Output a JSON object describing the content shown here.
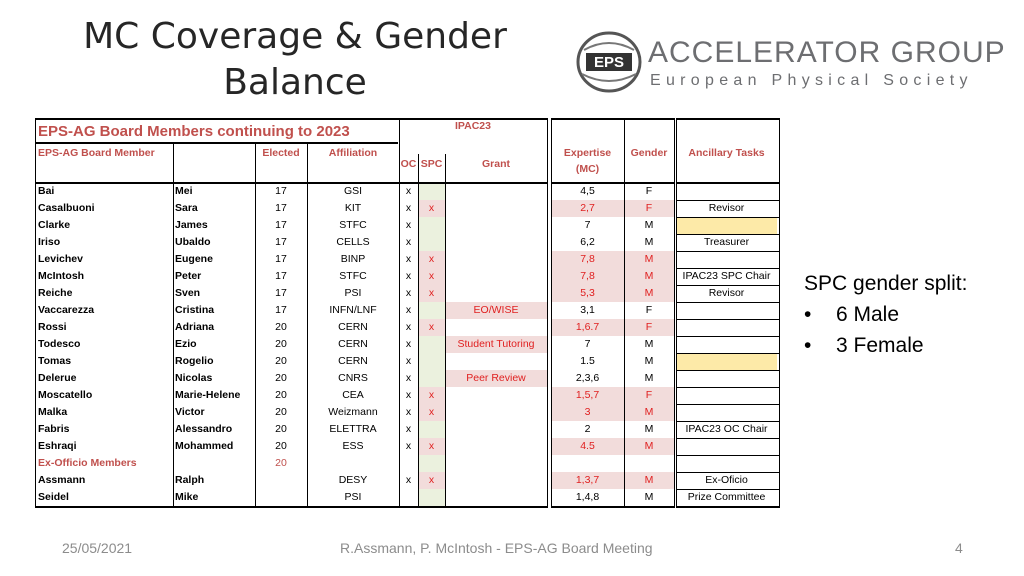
{
  "slide": {
    "title_line1": "MC Coverage & Gender",
    "title_line2": "Balance",
    "logo": {
      "line1": "ACCELERATOR GROUP",
      "line2": "European Physical Society",
      "emblem": "EPS"
    }
  },
  "table": {
    "section_title": "EPS-AG Board Members continuing to 2023",
    "ipac_label": "IPAC23",
    "headers": {
      "member": "EPS-AG Board Member",
      "elected": "Elected",
      "affiliation": "Affiliation",
      "oc": "OC",
      "spc": "SPC",
      "grant": "Grant",
      "expertise_line1": "Expertise",
      "expertise_line2": "(MC)",
      "gender": "Gender",
      "ancillary": "Ancillary Tasks"
    },
    "rows": [
      {
        "last": "Bai",
        "first": "Mei",
        "elected": "17",
        "aff": "GSI",
        "oc": "x",
        "spc": "",
        "grant": "",
        "exp": "4,5",
        "gender": "F",
        "anc": "",
        "pink": false,
        "anc_yellow": false
      },
      {
        "last": "Casalbuoni",
        "first": "Sara",
        "elected": "17",
        "aff": "KIT",
        "oc": "x",
        "spc": "x",
        "grant": "",
        "exp": "2,7",
        "gender": "F",
        "anc": "Revisor",
        "pink": true,
        "anc_yellow": false
      },
      {
        "last": "Clarke",
        "first": "James",
        "elected": "17",
        "aff": "STFC",
        "oc": "x",
        "spc": "",
        "grant": "",
        "exp": "7",
        "gender": "M",
        "anc": "",
        "pink": false,
        "anc_yellow": true
      },
      {
        "last": "Iriso",
        "first": "Ubaldo",
        "elected": "17",
        "aff": "CELLS",
        "oc": "x",
        "spc": "",
        "grant": "",
        "exp": "6,2",
        "gender": "M",
        "anc": "Treasurer",
        "pink": false,
        "anc_yellow": false
      },
      {
        "last": "Levichev",
        "first": "Eugene",
        "elected": "17",
        "aff": "BINP",
        "oc": "x",
        "spc": "x",
        "grant": "",
        "exp": "7,8",
        "gender": "M",
        "anc": "",
        "pink": true,
        "anc_yellow": false
      },
      {
        "last": "McIntosh",
        "first": "Peter",
        "elected": "17",
        "aff": "STFC",
        "oc": "x",
        "spc": "x",
        "grant": "",
        "exp": "7,8",
        "gender": "M",
        "anc": "IPAC23 SPC Chair",
        "pink": true,
        "anc_yellow": false
      },
      {
        "last": "Reiche",
        "first": "Sven",
        "elected": "17",
        "aff": "PSI",
        "oc": "x",
        "spc": "x",
        "grant": "",
        "exp": "5,3",
        "gender": "M",
        "anc": "Revisor",
        "pink": true,
        "anc_yellow": false
      },
      {
        "last": "Vaccarezza",
        "first": "Cristina",
        "elected": "17",
        "aff": "INFN/LNF",
        "oc": "x",
        "spc": "",
        "grant": "EO/WISE",
        "exp": "3,1",
        "gender": "F",
        "anc": "",
        "pink": false,
        "anc_yellow": false
      },
      {
        "last": "Rossi",
        "first": "Adriana",
        "elected": "20",
        "aff": "CERN",
        "oc": "x",
        "spc": "x",
        "grant": "",
        "exp": "1,6.7",
        "gender": "F",
        "anc": "",
        "pink": true,
        "anc_yellow": false
      },
      {
        "last": "Todesco",
        "first": "Ezio",
        "elected": "20",
        "aff": "CERN",
        "oc": "x",
        "spc": "",
        "grant": "Student Tutoring",
        "exp": "7",
        "gender": "M",
        "anc": "",
        "pink": false,
        "anc_yellow": false
      },
      {
        "last": "Tomas",
        "first": "Rogelio",
        "elected": "20",
        "aff": "CERN",
        "oc": "x",
        "spc": "",
        "grant": "",
        "exp": "1.5",
        "gender": "M",
        "anc": "",
        "pink": false,
        "anc_yellow": true
      },
      {
        "last": "Delerue",
        "first": "Nicolas",
        "elected": "20",
        "aff": "CNRS",
        "oc": "x",
        "spc": "",
        "grant": "Peer Review",
        "exp": "2,3,6",
        "gender": "M",
        "anc": "",
        "pink": false,
        "anc_yellow": false
      },
      {
        "last": "Moscatello",
        "first": "Marie-Helene",
        "elected": "20",
        "aff": "CEA",
        "oc": "x",
        "spc": "x",
        "grant": "",
        "exp": "1,5,7",
        "gender": "F",
        "anc": "",
        "pink": true,
        "anc_yellow": false
      },
      {
        "last": "Malka",
        "first": "Victor",
        "elected": "20",
        "aff": "Weizmann",
        "oc": "x",
        "spc": "x",
        "grant": "",
        "exp": "3",
        "gender": "M",
        "anc": "",
        "pink": true,
        "anc_yellow": false
      },
      {
        "last": "Fabris",
        "first": "Alessandro",
        "elected": "20",
        "aff": "ELETTRA",
        "oc": "x",
        "spc": "",
        "grant": "",
        "exp": "2",
        "gender": "M",
        "anc": "IPAC23 OC Chair",
        "pink": false,
        "anc_yellow": false
      },
      {
        "last": "Eshraqi",
        "first": "Mohammed",
        "elected": "20",
        "aff": "ESS",
        "oc": "x",
        "spc": "x",
        "grant": "",
        "exp": "4.5",
        "gender": "M",
        "anc": "",
        "pink": true,
        "anc_yellow": false
      }
    ],
    "exofficio_label": "Ex-Officio Members",
    "exofficio_elected": "20",
    "exofficio_rows": [
      {
        "last": "Assmann",
        "first": "Ralph",
        "elected": "",
        "aff": "DESY",
        "oc": "x",
        "spc": "x",
        "grant": "",
        "exp": "1,3,7",
        "gender": "M",
        "anc": "Ex-Oficio",
        "pink": true,
        "anc_yellow": false
      },
      {
        "last": "Seidel",
        "first": "Mike",
        "elected": "",
        "aff": "PSI",
        "oc": "",
        "spc": "",
        "grant": "",
        "exp": "1,4,8",
        "gender": "M",
        "anc": "Prize Committee",
        "pink": false,
        "anc_yellow": false
      }
    ]
  },
  "spc_split": {
    "title": "SPC gender split:",
    "bullet": "•",
    "items": [
      "6 Male",
      "3 Female"
    ]
  },
  "footer": {
    "date": "25/05/2021",
    "center": "R.Assmann, P. McIntosh - EPS-AG Board Meeting",
    "page": "4"
  },
  "colors": {
    "header_red": "#c0504d",
    "pink_fill": "#f2dcdb",
    "green_fill": "#ebf1de",
    "yellow_fill": "#fdeaa8",
    "mark_red": "#e02020"
  }
}
